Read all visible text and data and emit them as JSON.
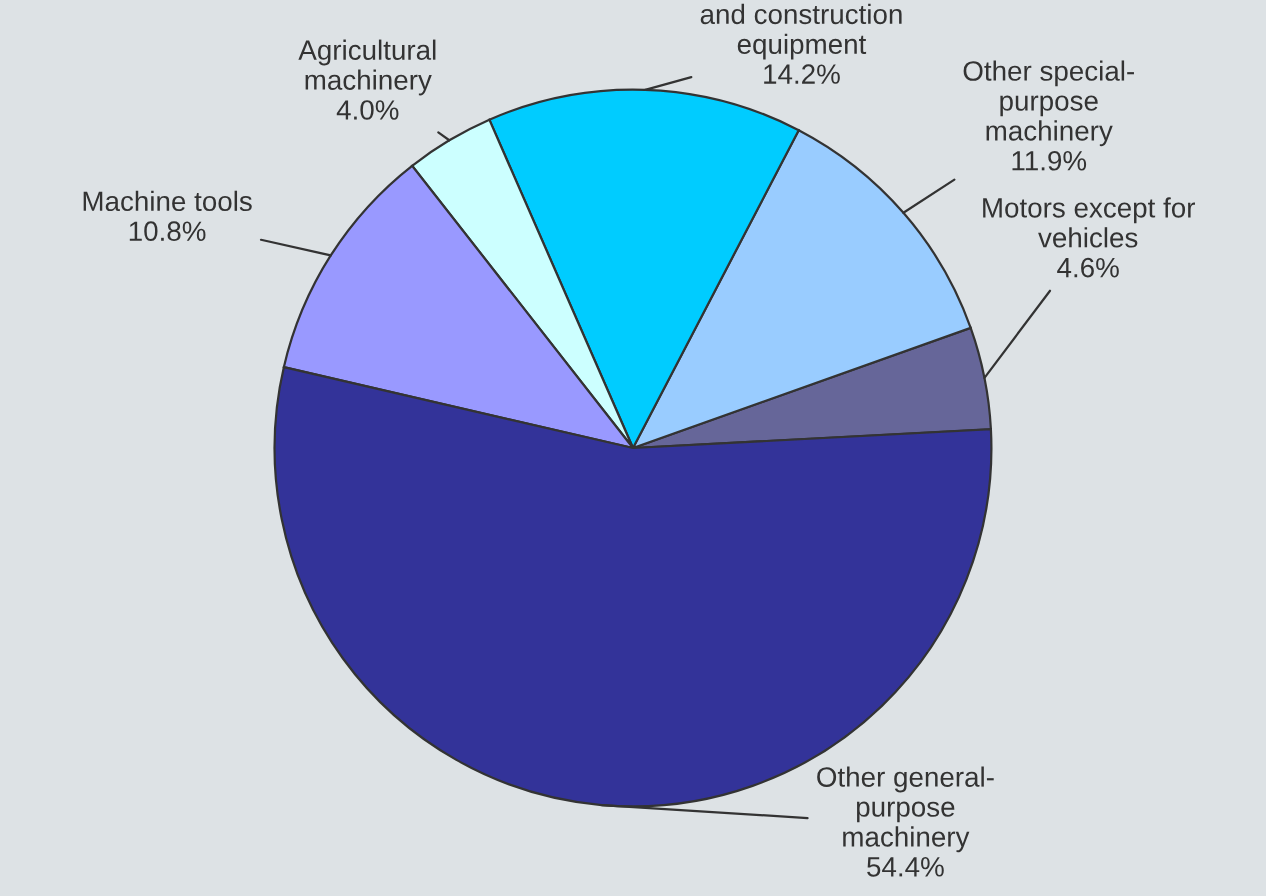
{
  "chart_data": {
    "type": "pie",
    "categories": [
      "Motors except for\nvehicles",
      "Other special-\npurpose\nmachinery",
      "and construction\nequipment",
      "Agricultural\nmachinery",
      "Machine tools",
      "Other general-\npurpose\nmachinery"
    ],
    "values": [
      4.6,
      11.9,
      14.2,
      4.0,
      10.8,
      54.4
    ],
    "colors": [
      "#666699",
      "#99ccff",
      "#00ccff",
      "#ccffff",
      "#9999ff",
      "#333399"
    ],
    "value_labels": [
      "4.6%",
      "11.9%",
      "14.2%",
      "4.0%",
      "10.8%",
      "54.4%"
    ]
  }
}
